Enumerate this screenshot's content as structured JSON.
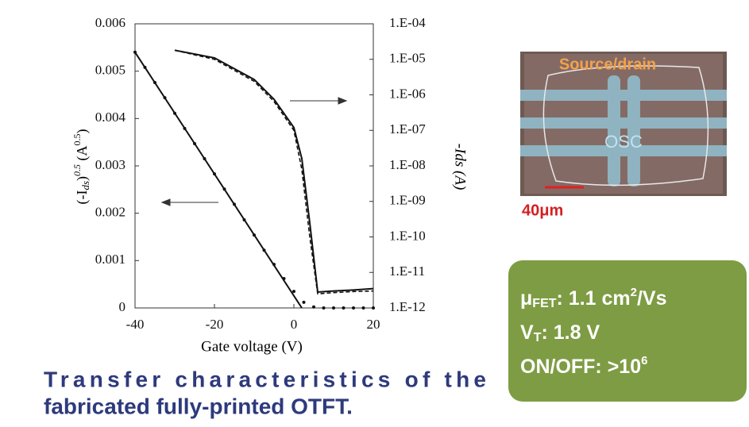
{
  "chart_data": {
    "type": "line",
    "xlabel": "Gate voltage (V)",
    "ylabel_parts": [
      "(-I",
      "ds",
      ")",
      "0.5",
      " (A",
      "0.5",
      ")"
    ],
    "y2label": "-Ids (A)",
    "xlim": [
      -40,
      20
    ],
    "xticks": [
      -40,
      -20,
      0,
      20
    ],
    "ylim": [
      0,
      0.006
    ],
    "yticks": [
      0,
      0.001,
      0.002,
      0.003,
      0.004,
      0.005,
      0.006
    ],
    "y2lim": [
      1e-12,
      0.0001
    ],
    "y2log": true,
    "y2ticks": [
      {
        "value": 1e-12,
        "label": "1.E-12"
      },
      {
        "value": 1e-11,
        "label": "1.E-11"
      },
      {
        "value": 1e-10,
        "label": "1.E-10"
      },
      {
        "value": 1e-09,
        "label": "1.E-09"
      },
      {
        "value": 1e-08,
        "label": "1.E-08"
      },
      {
        "value": 1e-07,
        "label": "1.E-07"
      },
      {
        "value": 1e-06,
        "label": "1.E-06"
      },
      {
        "value": 1e-05,
        "label": "1.E-05"
      },
      {
        "value": 0.0001,
        "label": "1.E-04"
      }
    ],
    "series": [
      {
        "color": "#111111",
        "style": "solid",
        "x": [
          -40,
          2
        ],
        "values": [
          0.0054,
          0
        ]
      },
      {
        "color": "#111111",
        "style": "dots",
        "x": [
          -40,
          -37.5,
          -35,
          -32.5,
          -30,
          -27.5,
          -25,
          -22.5,
          -20,
          -17.5,
          -15,
          -12.5,
          -10,
          -7.5,
          -5,
          -2.5,
          0,
          2.5,
          5,
          7.5,
          10,
          12.5,
          15,
          17.5,
          20
        ],
        "values": [
          0.0054,
          0.00508,
          0.00476,
          0.00444,
          0.00411,
          0.00379,
          0.00347,
          0.00315,
          0.00283,
          0.00251,
          0.00219,
          0.00186,
          0.00154,
          0.00122,
          0.00092,
          0.00062,
          0.00035,
          0.00012,
          2e-05,
          0,
          0,
          0,
          0,
          0,
          0
        ]
      },
      {
        "color": "#111111",
        "style": "solid",
        "axis": "y2",
        "x": [
          -30,
          -20,
          -10,
          -5,
          0,
          2,
          4,
          6,
          10,
          15,
          20
        ],
        "values": [
          1.8e-05,
          1.1e-05,
          2.7e-06,
          7.5e-07,
          1.2e-07,
          1.6e-08,
          2.5e-10,
          2.8e-12,
          3e-12,
          3.2e-12,
          3.5e-12
        ]
      },
      {
        "color": "#111111",
        "style": "dashed",
        "axis": "y2",
        "x": [
          -30,
          -20,
          -10,
          -5,
          0,
          2,
          4,
          6,
          10,
          15,
          20
        ],
        "values": [
          1.8e-05,
          1e-05,
          2.4e-06,
          6.5e-07,
          1e-07,
          8e-09,
          1e-10,
          2.5e-12,
          2.7e-12,
          2.9e-12,
          3e-12
        ]
      }
    ]
  },
  "micrograph": {
    "label_source_drain": "Source/drain",
    "label_osc": "OSC",
    "scale_bar": "40μm"
  },
  "summary": {
    "mobility": [
      "μ",
      "FET",
      ": 1.1 cm",
      "2",
      "/Vs"
    ],
    "threshold": [
      "V",
      "T",
      ": 1.8 V"
    ],
    "on_off": [
      "ON/OFF: >10",
      "6"
    ]
  },
  "caption": [
    "Transfer characteristics of the",
    "fabricated fully-printed OTFT."
  ]
}
